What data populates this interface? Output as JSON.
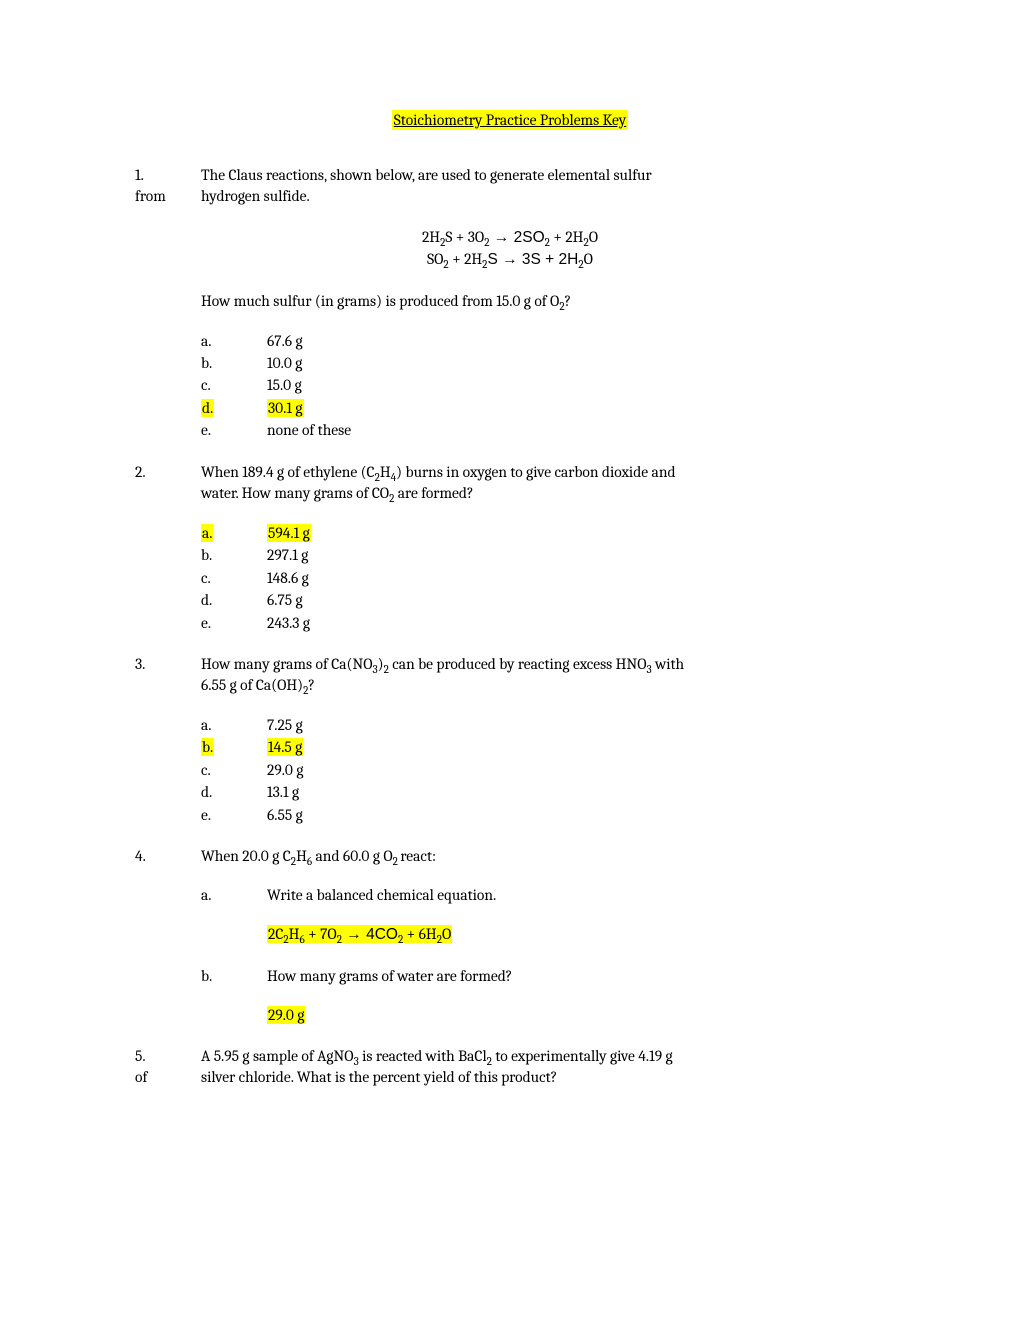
{
  "title": "Stoichiometry Practice Problems Key",
  "highlight_color": "#ffff00",
  "q1": {
    "num": "1.",
    "text_line1": "The Claus reactions, shown below, are used to generate elemental sulfur",
    "from_label": "from",
    "text_line2": "hydrogen sulfide.",
    "eq1_pre": "2H",
    "eq1_s1": "2",
    "eq1_a": "S +  3O",
    "eq1_s2": "2",
    "eq1_arr": "  →  2SO",
    "eq1_s3": "2",
    "eq1_b": "  +  2H",
    "eq1_s4": "2",
    "eq1_c": "O",
    "eq2_a": "SO",
    "eq2_s1": "2",
    "eq2_b": "  +  2H",
    "eq2_s2": "2",
    "eq2_c": "S  →  3S  +  2H",
    "eq2_s3": "2",
    "eq2_d": "O",
    "follow_a": "How much sulfur (in grams) is produced from 15.0 g of O",
    "follow_s": "2",
    "follow_b": "?",
    "opts": [
      {
        "l": "a.",
        "t": "67.6 g",
        "hl": false
      },
      {
        "l": "b.",
        "t": "10.0 g",
        "hl": false
      },
      {
        "l": "c.",
        "t": "15.0 g",
        "hl": false
      },
      {
        "l": "d.",
        "t": "30.1 g",
        "hl": true
      },
      {
        "l": "e.",
        "t": "none of these",
        "hl": false
      }
    ]
  },
  "q2": {
    "num": "2.",
    "l1a": "When 189.4 g of ethylene (C",
    "l1s1": "2",
    "l1b": "H",
    "l1s2": "4",
    "l1c": ") burns in oxygen to give carbon dioxide and",
    "l2a": "water.  How many grams of CO",
    "l2s": "2",
    "l2b": " are formed?",
    "opts": [
      {
        "l": "a.",
        "t": "594.1 g",
        "hl": true
      },
      {
        "l": "b.",
        "t": "297.1 g",
        "hl": false
      },
      {
        "l": "c.",
        "t": "148.6 g",
        "hl": false
      },
      {
        "l": "d.",
        "t": "6.75 g",
        "hl": false
      },
      {
        "l": "e.",
        "t": "243.3 g",
        "hl": false
      }
    ]
  },
  "q3": {
    "num": "3.",
    "l1a": "How many grams of Ca(NO",
    "l1s1": "3",
    "l1b": ")",
    "l1s2": "2",
    "l1c": " can be produced by reacting excess HNO",
    "l1s3": "3",
    "l1d": " with",
    "l2a": "6.55 g of Ca(OH)",
    "l2s": "2",
    "l2b": "?",
    "opts": [
      {
        "l": "a.",
        "t": "7.25 g",
        "hl": false
      },
      {
        "l": "b.",
        "t": "14.5 g",
        "hl": true
      },
      {
        "l": "c.",
        "t": "29.0 g",
        "hl": false
      },
      {
        "l": "d.",
        "t": "13.1 g",
        "hl": false
      },
      {
        "l": "e.",
        "t": "6.55 g",
        "hl": false
      }
    ]
  },
  "q4": {
    "num": "4.",
    "l1a": "When 20.0 g C",
    "l1s1": "2",
    "l1b": "H",
    "l1s2": "6",
    "l1c": " and 60.0 g O",
    "l1s3": "2 ",
    "l1d": "react:",
    "sub_a_l": "a.",
    "sub_a_t": "Write a balanced chemical equation.",
    "ans_a_1": "2C",
    "ans_a_s1": "2",
    "ans_a_2": "H",
    "ans_a_s2": "6",
    "ans_a_3": "  +  7O",
    "ans_a_s3": "2",
    "ans_a_4": "   →   4CO",
    "ans_a_s4": "2",
    "ans_a_5": "  +  6H",
    "ans_a_s5": "2",
    "ans_a_6": "O",
    "sub_b_l": "b.",
    "sub_b_t": "How many grams of water are formed?",
    "ans_b": "29.0 g"
  },
  "q5": {
    "num": "5.",
    "l1a": "A 5.95 g sample of AgNO",
    "l1s1": "3",
    "l1b": " is reacted with BaCl",
    "l1s2": "2",
    "l1c": " to experimentally give 4.19 g",
    "of_label": "of",
    "l2": "silver chloride.  What is the percent yield of this product?"
  }
}
